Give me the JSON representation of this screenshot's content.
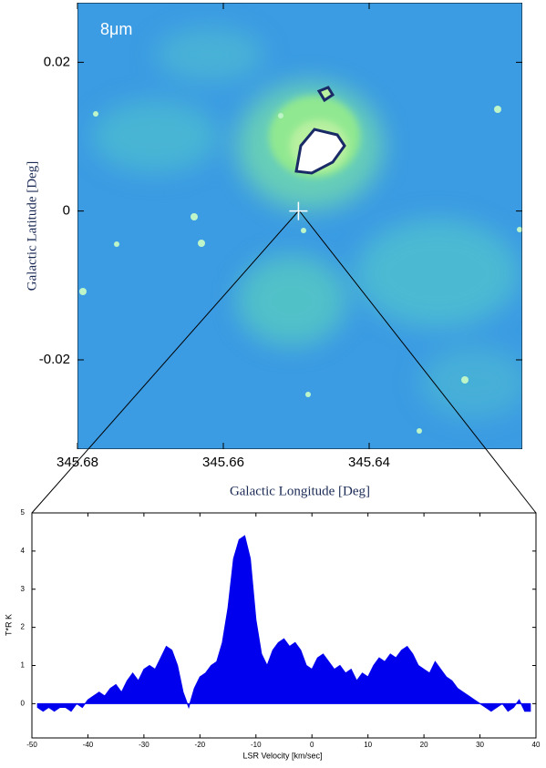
{
  "chart_data": [
    {
      "type": "image",
      "annotation": "8μm",
      "xlabel": "Galactic Longitude [Deg]",
      "ylabel": "Galactic Latitude [Deg]",
      "xlim": [
        345.68,
        345.619
      ],
      "xticks": [
        345.68,
        345.66,
        345.64
      ],
      "ylim": [
        -0.032,
        0.028
      ],
      "yticks": [
        0.02,
        0,
        -0.02
      ],
      "marker": {
        "x": 345.6497,
        "y": 0
      }
    },
    {
      "type": "area",
      "color": "#0000ee",
      "xlabel": "LSR Velocity [km/sec]",
      "ylabel": "T*R K",
      "xlim": [
        -50,
        40
      ],
      "xticks": [
        -50,
        -40,
        -30,
        -20,
        -10,
        0,
        10,
        20,
        30,
        40
      ],
      "ylim": [
        -0.9,
        5
      ],
      "yticks": [
        0,
        1,
        2,
        3,
        4,
        5
      ],
      "x": [
        -49,
        -48,
        -47,
        -46,
        -45,
        -44,
        -43,
        -42,
        -41,
        -40,
        -39,
        -38,
        -37,
        -36,
        -35,
        -34,
        -33,
        -32,
        -31,
        -30,
        -29,
        -28,
        -27,
        -26,
        -25,
        -24,
        -23,
        -22,
        -21,
        -20,
        -19,
        -18,
        -17,
        -16,
        -15,
        -14,
        -13,
        -12,
        -11,
        -10,
        -9,
        -8,
        -7,
        -6,
        -5,
        -4,
        -3,
        -2,
        -1,
        0,
        1,
        2,
        3,
        4,
        5,
        6,
        7,
        8,
        9,
        10,
        11,
        12,
        13,
        14,
        15,
        16,
        17,
        18,
        19,
        20,
        21,
        22,
        23,
        24,
        25,
        26,
        27,
        28,
        29,
        30,
        31,
        32,
        33,
        34,
        35,
        36,
        37,
        38,
        39
      ],
      "values": [
        -0.1,
        -0.2,
        -0.1,
        -0.2,
        -0.1,
        -0.1,
        -0.2,
        0.0,
        -0.1,
        0.1,
        0.2,
        0.3,
        0.2,
        0.4,
        0.5,
        0.3,
        0.6,
        0.8,
        0.6,
        0.9,
        1.0,
        0.9,
        1.2,
        1.5,
        1.4,
        1.0,
        0.3,
        -0.1,
        0.4,
        0.7,
        0.8,
        1.0,
        1.1,
        1.6,
        2.5,
        3.8,
        4.3,
        4.4,
        3.8,
        2.2,
        1.3,
        1.0,
        1.4,
        1.6,
        1.7,
        1.5,
        1.6,
        1.4,
        1.0,
        0.9,
        1.2,
        1.3,
        1.1,
        0.9,
        1.0,
        0.8,
        0.9,
        0.6,
        0.8,
        0.7,
        1.0,
        1.2,
        1.1,
        1.3,
        1.2,
        1.4,
        1.5,
        1.3,
        1.0,
        0.9,
        0.8,
        1.1,
        0.9,
        0.7,
        0.6,
        0.4,
        0.3,
        0.2,
        0.1,
        0.0,
        -0.1,
        -0.2,
        -0.1,
        0.0,
        -0.2,
        -0.1,
        0.1,
        -0.2,
        -0.2
      ]
    }
  ]
}
